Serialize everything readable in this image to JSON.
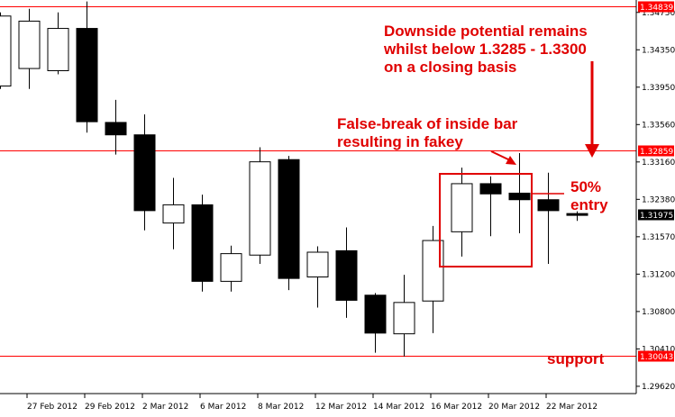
{
  "chart_data": {
    "type": "candlestick",
    "x_tick_labels": [
      "27 Feb 2012",
      "29 Feb 2012",
      "2 Mar 2012",
      "6 Mar 2012",
      "8 Mar 2012",
      "12 Mar 2012",
      "14 Mar 2012",
      "16 Mar 2012",
      "20 Mar 2012",
      "22 Mar 2012"
    ],
    "y_tick_labels": [
      "1.34750",
      "1.34350",
      "1.33950",
      "1.33560",
      "1.33160",
      "1.32380",
      "1.31570",
      "1.31200",
      "1.30800",
      "1.30410",
      "1.29620"
    ],
    "ylim": [
      1.2952,
      1.3492
    ],
    "candles": [
      {
        "open": 1.3374,
        "high": 1.3475,
        "low": 1.337,
        "close": 1.347
      },
      {
        "open": 1.3398,
        "high": 1.348,
        "low": 1.337,
        "close": 1.3463
      },
      {
        "open": 1.3395,
        "high": 1.3475,
        "low": 1.339,
        "close": 1.3453
      },
      {
        "open": 1.3453,
        "high": 1.349,
        "low": 1.331,
        "close": 1.3325
      },
      {
        "open": 1.3324,
        "high": 1.3355,
        "low": 1.328,
        "close": 1.3307
      },
      {
        "open": 1.3307,
        "high": 1.3335,
        "low": 1.3176,
        "close": 1.3203
      },
      {
        "open": 1.3186,
        "high": 1.3248,
        "low": 1.315,
        "close": 1.3211
      },
      {
        "open": 1.3211,
        "high": 1.3225,
        "low": 1.3092,
        "close": 1.3106
      },
      {
        "open": 1.3106,
        "high": 1.3155,
        "low": 1.3092,
        "close": 1.3144
      },
      {
        "open": 1.3142,
        "high": 1.329,
        "low": 1.313,
        "close": 1.327
      },
      {
        "open": 1.3273,
        "high": 1.3278,
        "low": 1.3094,
        "close": 1.311
      },
      {
        "open": 1.3112,
        "high": 1.3154,
        "low": 1.307,
        "close": 1.3146
      },
      {
        "open": 1.3148,
        "high": 1.318,
        "low": 1.3056,
        "close": 1.308
      },
      {
        "open": 1.3087,
        "high": 1.309,
        "low": 1.3008,
        "close": 1.3035
      },
      {
        "open": 1.3034,
        "high": 1.3115,
        "low": 1.3003,
        "close": 1.3077
      },
      {
        "open": 1.3079,
        "high": 1.3182,
        "low": 1.3035,
        "close": 1.3162
      },
      {
        "open": 1.3174,
        "high": 1.3262,
        "low": 1.314,
        "close": 1.324
      },
      {
        "open": 1.324,
        "high": 1.325,
        "low": 1.3168,
        "close": 1.3226
      },
      {
        "open": 1.3227,
        "high": 1.3282,
        "low": 1.3172,
        "close": 1.3218
      },
      {
        "open": 1.3218,
        "high": 1.3255,
        "low": 1.313,
        "close": 1.3203
      },
      {
        "open": 1.3199,
        "high": 1.3202,
        "low": 1.3189,
        "close": 1.3197
      }
    ],
    "levels": [
      {
        "label": "1.34839",
        "value": 1.34839,
        "color": "#ff0000"
      },
      {
        "label": "1.32859",
        "value": 1.32859,
        "color": "#ff0000"
      },
      {
        "label": "1.31975",
        "value": 1.31975,
        "color": "#000000"
      },
      {
        "label": "1.30043",
        "value": 1.30043,
        "color": "#ff0000"
      }
    ],
    "annotations": {
      "downside_lines": [
        "Downside potential remains",
        "whilst below 1.3285 - 1.3300",
        "on a closing basis"
      ],
      "fakey_lines": [
        "False-break of inside bar",
        "resulting in fakey"
      ],
      "entry_lines": [
        "50%",
        "entry"
      ],
      "support": "support"
    },
    "colors": {
      "bearish": "#000000",
      "bullish": "#ffffff",
      "annotation": "#e00000"
    }
  }
}
